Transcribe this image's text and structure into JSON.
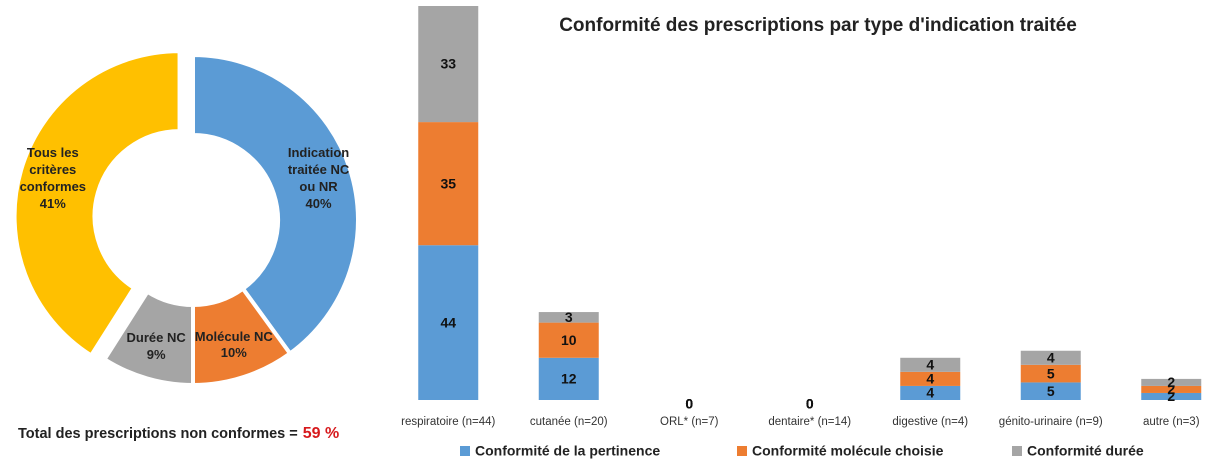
{
  "chart_data": [
    {
      "type": "donut",
      "categories": [
        "Indication traitée NC ou NR",
        "Molécule NC",
        "Durée NC",
        "Tous les critères conformes"
      ],
      "values": [
        40,
        10,
        9,
        41
      ],
      "value_labels": [
        "40%",
        "10%",
        "9%",
        "41%"
      ],
      "colors": [
        "#5b9bd5",
        "#ed7d31",
        "#a5a5a5",
        "#ffc000"
      ],
      "exploded": [
        false,
        false,
        false,
        true
      ],
      "annotation": "Total des prescriptions non conformes =",
      "annotation_value": "59 %"
    },
    {
      "type": "stacked_bar",
      "title": "Conformité des prescriptions par type d'indication traitée",
      "categories": [
        "respiratoire (n=44)",
        "cutanée (n=20)",
        "ORL* (n=7)",
        "dentaire* (n=14)",
        "digestive (n=4)",
        "génito-urinaire (n=9)",
        "autre (n=3)"
      ],
      "series": [
        {
          "name": "Conformité de la pertinence",
          "color": "#5b9bd5",
          "values": [
            44,
            12,
            0,
            0,
            4,
            5,
            2
          ]
        },
        {
          "name": "Conformité molécule choisie",
          "color": "#ed7d31",
          "values": [
            35,
            10,
            0,
            0,
            4,
            5,
            2
          ]
        },
        {
          "name": "Conformité durée",
          "color": "#a5a5a5",
          "values": [
            33,
            3,
            0,
            0,
            4,
            4,
            2
          ]
        }
      ],
      "ylim": [
        0,
        112
      ],
      "legend": "bottom"
    }
  ]
}
